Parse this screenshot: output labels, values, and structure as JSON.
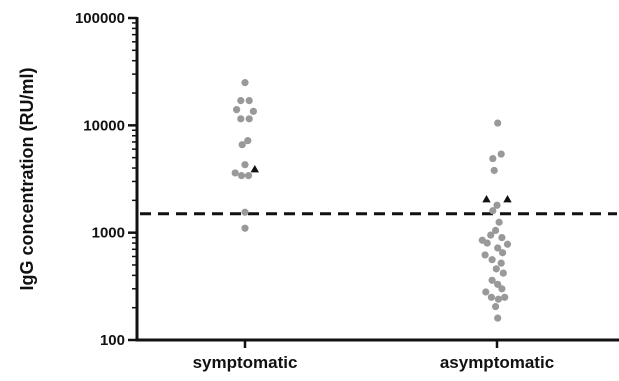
{
  "chart_data": {
    "type": "scatter",
    "ylabel": "IgG concentration (RU/ml)",
    "yscale": "log",
    "ylim": [
      100,
      100000
    ],
    "yticks": [
      100,
      1000,
      10000,
      100000
    ],
    "ytick_labels": [
      "100",
      "1000",
      "10000",
      "100000"
    ],
    "categories": [
      "symptomatic",
      "asymptomatic"
    ],
    "threshold": 1500,
    "threshold_style": "dashed",
    "marker_colors": {
      "circle": "#999999",
      "triangle": "#111111"
    },
    "series": [
      {
        "category": "symptomatic",
        "points": [
          {
            "dx": 0,
            "y": 25000,
            "marker": "circle"
          },
          {
            "dx": -0.3,
            "y": 17000,
            "marker": "circle"
          },
          {
            "dx": 0.3,
            "y": 17000,
            "marker": "circle"
          },
          {
            "dx": -0.6,
            "y": 14000,
            "marker": "circle"
          },
          {
            "dx": 0.6,
            "y": 13500,
            "marker": "circle"
          },
          {
            "dx": -0.3,
            "y": 11500,
            "marker": "circle"
          },
          {
            "dx": 0.3,
            "y": 11500,
            "marker": "circle"
          },
          {
            "dx": 0.2,
            "y": 7200,
            "marker": "circle"
          },
          {
            "dx": -0.2,
            "y": 6600,
            "marker": "circle"
          },
          {
            "dx": 0,
            "y": 4300,
            "marker": "circle"
          },
          {
            "dx": 0.7,
            "y": 3900,
            "marker": "triangle"
          },
          {
            "dx": -0.7,
            "y": 3600,
            "marker": "circle"
          },
          {
            "dx": -0.25,
            "y": 3400,
            "marker": "circle"
          },
          {
            "dx": 0.25,
            "y": 3400,
            "marker": "circle"
          },
          {
            "dx": 0,
            "y": 1550,
            "marker": "circle"
          },
          {
            "dx": 0,
            "y": 1100,
            "marker": "circle"
          }
        ]
      },
      {
        "category": "asymptomatic",
        "points": [
          {
            "dx": 0.05,
            "y": 10500,
            "marker": "circle"
          },
          {
            "dx": 0.3,
            "y": 5400,
            "marker": "circle"
          },
          {
            "dx": -0.3,
            "y": 4900,
            "marker": "circle"
          },
          {
            "dx": -0.2,
            "y": 3800,
            "marker": "circle"
          },
          {
            "dx": -0.75,
            "y": 2050,
            "marker": "triangle"
          },
          {
            "dx": 0.75,
            "y": 2050,
            "marker": "triangle"
          },
          {
            "dx": 0,
            "y": 1800,
            "marker": "circle"
          },
          {
            "dx": -0.3,
            "y": 1600,
            "marker": "circle"
          },
          {
            "dx": 0.15,
            "y": 1250,
            "marker": "circle"
          },
          {
            "dx": -0.1,
            "y": 1050,
            "marker": "circle"
          },
          {
            "dx": -0.45,
            "y": 950,
            "marker": "circle"
          },
          {
            "dx": 0.35,
            "y": 900,
            "marker": "circle"
          },
          {
            "dx": -1.05,
            "y": 850,
            "marker": "circle"
          },
          {
            "dx": -0.7,
            "y": 800,
            "marker": "circle"
          },
          {
            "dx": 0.75,
            "y": 780,
            "marker": "circle"
          },
          {
            "dx": 0.05,
            "y": 720,
            "marker": "circle"
          },
          {
            "dx": 0.4,
            "y": 650,
            "marker": "circle"
          },
          {
            "dx": -0.85,
            "y": 620,
            "marker": "circle"
          },
          {
            "dx": -0.35,
            "y": 560,
            "marker": "circle"
          },
          {
            "dx": 0.3,
            "y": 520,
            "marker": "circle"
          },
          {
            "dx": -0.05,
            "y": 460,
            "marker": "circle"
          },
          {
            "dx": 0.45,
            "y": 420,
            "marker": "circle"
          },
          {
            "dx": -0.35,
            "y": 360,
            "marker": "circle"
          },
          {
            "dx": 0.05,
            "y": 330,
            "marker": "circle"
          },
          {
            "dx": 0.35,
            "y": 300,
            "marker": "circle"
          },
          {
            "dx": -0.8,
            "y": 280,
            "marker": "circle"
          },
          {
            "dx": -0.4,
            "y": 250,
            "marker": "circle"
          },
          {
            "dx": 0.1,
            "y": 240,
            "marker": "circle"
          },
          {
            "dx": 0.55,
            "y": 250,
            "marker": "circle"
          },
          {
            "dx": -0.1,
            "y": 205,
            "marker": "circle"
          },
          {
            "dx": 0.05,
            "y": 160,
            "marker": "circle"
          }
        ]
      }
    ]
  }
}
